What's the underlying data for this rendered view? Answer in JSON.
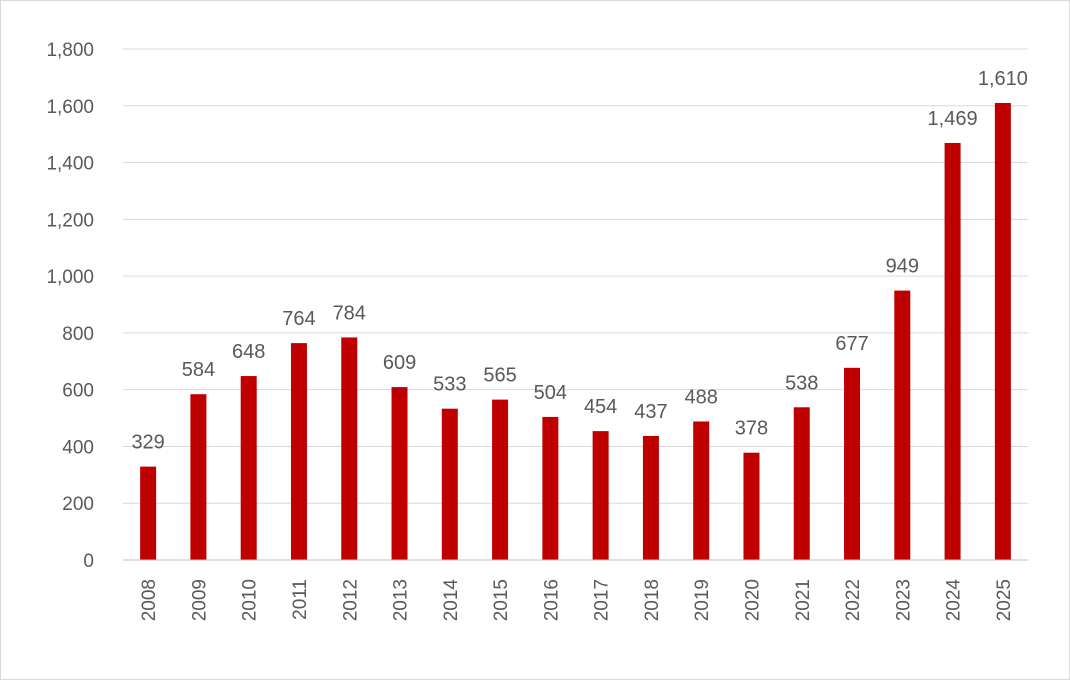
{
  "chart_data": {
    "type": "bar",
    "categories": [
      "2008",
      "2009",
      "2010",
      "2011",
      "2012",
      "2013",
      "2014",
      "2015",
      "2016",
      "2017",
      "2018",
      "2019",
      "2020",
      "2021",
      "2022",
      "2023",
      "2024",
      "2025"
    ],
    "values": [
      329,
      584,
      648,
      764,
      784,
      609,
      533,
      565,
      504,
      454,
      437,
      488,
      378,
      538,
      677,
      949,
      1469,
      1610
    ],
    "data_labels": [
      "329",
      "584",
      "648",
      "764",
      "784",
      "609",
      "533",
      "565",
      "504",
      "454",
      "437",
      "488",
      "378",
      "538",
      "677",
      "949",
      "1,469",
      "1,610"
    ],
    "y_ticks": [
      0,
      200,
      400,
      600,
      800,
      1000,
      1200,
      1400,
      1600,
      1800
    ],
    "y_tick_labels": [
      "0",
      "200",
      "400",
      "600",
      "800",
      "1,000",
      "1,200",
      "1,400",
      "1,600",
      "1,800"
    ],
    "ylim": [
      0,
      1800
    ],
    "grid": true,
    "legend": "none",
    "bar_color": "#c00000"
  }
}
